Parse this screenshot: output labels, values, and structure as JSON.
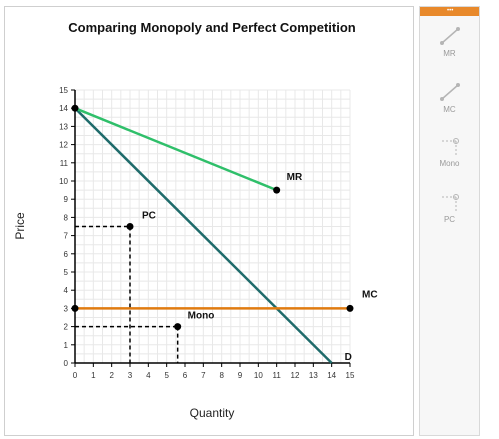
{
  "tools": [
    {
      "label": "MR",
      "icon": "line-tool-icon"
    },
    {
      "label": "MC",
      "icon": "line-tool-icon"
    },
    {
      "label": "Mono",
      "icon": "point-drop-line-icon"
    },
    {
      "label": "PC",
      "icon": "point-drop-line-icon"
    }
  ],
  "colors": {
    "demand": "#1f6b6b",
    "mr": "#2fbf6a",
    "mc": "#e07b10",
    "guide": "#000000",
    "grid": "#e8e8e8",
    "tool_header": "#e8892b"
  },
  "chart_data": {
    "type": "line",
    "title": "Comparing Monopoly and Perfect Competition",
    "xlabel": "Quantity",
    "ylabel": "Price",
    "xlim": [
      0,
      15
    ],
    "ylim": [
      0,
      15
    ],
    "x_ticks": [
      0,
      1,
      2,
      3,
      4,
      5,
      6,
      7,
      8,
      9,
      10,
      11,
      12,
      13,
      14,
      15
    ],
    "y_ticks": [
      0,
      1,
      2,
      3,
      4,
      5,
      6,
      7,
      8,
      9,
      10,
      11,
      12,
      13,
      14,
      15
    ],
    "grid": true,
    "lines": [
      {
        "name": "D",
        "color": "#1f6b6b",
        "points": [
          [
            0,
            14
          ],
          [
            14,
            0
          ]
        ],
        "label_at": 1
      },
      {
        "name": "MR",
        "color": "#2fbf6a",
        "points": [
          [
            0,
            14
          ],
          [
            11,
            9.5
          ]
        ],
        "label_at": 1
      },
      {
        "name": "MC",
        "color": "#e07b10",
        "points": [
          [
            0,
            3
          ],
          [
            15,
            3
          ]
        ],
        "label_at": 1
      }
    ],
    "points": [
      {
        "name": "PC",
        "x": 3,
        "y": 7.5
      },
      {
        "name": "Mono",
        "x": 5.6,
        "y": 2
      }
    ]
  }
}
